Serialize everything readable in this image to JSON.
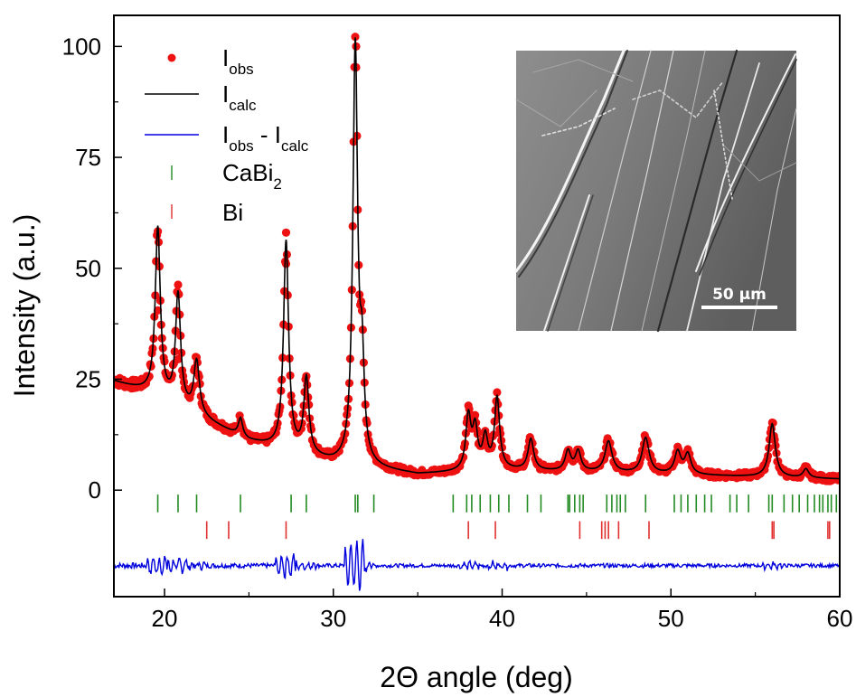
{
  "chart_data": {
    "type": "line",
    "xlabel": "2Θ angle (deg)",
    "ylabel": "Intensity (a.u.)",
    "xlim": [
      17,
      60
    ],
    "ylim": [
      -24,
      107
    ],
    "x_ticks": [
      20,
      30,
      40,
      50,
      60
    ],
    "y_ticks": [
      0,
      25,
      50,
      75,
      100
    ],
    "grid": false,
    "legend_placement": "top-left",
    "baseline": [
      [
        17,
        24.5
      ],
      [
        19,
        22
      ],
      [
        25,
        11
      ],
      [
        30,
        6
      ],
      [
        35,
        3.5
      ],
      [
        40,
        4.5
      ],
      [
        45,
        4
      ],
      [
        50,
        3.5
      ],
      [
        55,
        3
      ],
      [
        60,
        2.5
      ]
    ],
    "peaks": [
      [
        19.6,
        38,
        0.18
      ],
      [
        20.8,
        25,
        0.18
      ],
      [
        21.9,
        12,
        0.2
      ],
      [
        24.5,
        4,
        0.15
      ],
      [
        27.2,
        47,
        0.18
      ],
      [
        28.4,
        17,
        0.18
      ],
      [
        31.3,
        94,
        0.17
      ],
      [
        31.7,
        20,
        0.15
      ],
      [
        38.0,
        12,
        0.18
      ],
      [
        38.4,
        9,
        0.18
      ],
      [
        39.0,
        7,
        0.18
      ],
      [
        39.7,
        16,
        0.18
      ],
      [
        41.7,
        7,
        0.2
      ],
      [
        43.9,
        4.5,
        0.2
      ],
      [
        44.5,
        4.5,
        0.2
      ],
      [
        46.3,
        7,
        0.25
      ],
      [
        48.5,
        8,
        0.25
      ],
      [
        50.4,
        5,
        0.22
      ],
      [
        51.0,
        4.5,
        0.22
      ],
      [
        56.0,
        12,
        0.22
      ],
      [
        58.0,
        2,
        0.2
      ]
    ],
    "series": [
      {
        "name": "I_obs",
        "color": "#ee1111",
        "style": "dots",
        "note_points": [
          [
            31.35,
            100
          ],
          [
            27.2,
            51
          ],
          [
            19.6,
            40.5
          ],
          [
            20.8,
            29.5
          ]
        ]
      },
      {
        "name": "I_calc",
        "color": "#000000",
        "style": "line"
      },
      {
        "name": "I_obs - I_calc",
        "color": "#0000dd",
        "style": "line",
        "offset": -17
      },
      {
        "name": "CaBi2",
        "color": "#228b22",
        "style": "ticks",
        "offset": -3,
        "positions": [
          19.6,
          20.8,
          21.9,
          24.5,
          27.5,
          28.4,
          31.3,
          31.45,
          32.4,
          37.1,
          37.9,
          38.2,
          38.7,
          39.3,
          39.8,
          40.4,
          41.5,
          42.3,
          43.9,
          44.0,
          44.3,
          44.6,
          44.8,
          46.2,
          46.5,
          46.8,
          47.0,
          47.3,
          48.5,
          50.2,
          50.6,
          51.0,
          51.5,
          52.0,
          52.4,
          53.5,
          53.9,
          54.6,
          55.8,
          56.0,
          56.7,
          57.2,
          57.6,
          58.1,
          58.5,
          58.8,
          59.0,
          59.3,
          59.5,
          59.8
        ]
      },
      {
        "name": "Bi",
        "color": "#e03030",
        "style": "ticks",
        "offset": -9,
        "positions": [
          22.5,
          23.8,
          27.2,
          38.0,
          39.6,
          44.6,
          45.9,
          46.1,
          46.3,
          46.9,
          48.7,
          56.0,
          56.1,
          59.3,
          59.4
        ]
      }
    ]
  },
  "legend": {
    "items": [
      {
        "label": "I",
        "sub": "obs",
        "tail": "",
        "color": "#ee1111"
      },
      {
        "label": "I",
        "sub": "calc",
        "tail": "",
        "color": "#000000"
      },
      {
        "label": "I",
        "sub": "obs",
        "tail": " - I",
        "sub2": "calc",
        "color": "#0000dd"
      },
      {
        "label": "CaBi",
        "sub": "2",
        "tail": "",
        "color": "#228b22"
      },
      {
        "label": "Bi",
        "sub": "",
        "tail": "",
        "color": "#e03030"
      }
    ]
  },
  "inset": {
    "scale_bar_label": "50 μm"
  }
}
